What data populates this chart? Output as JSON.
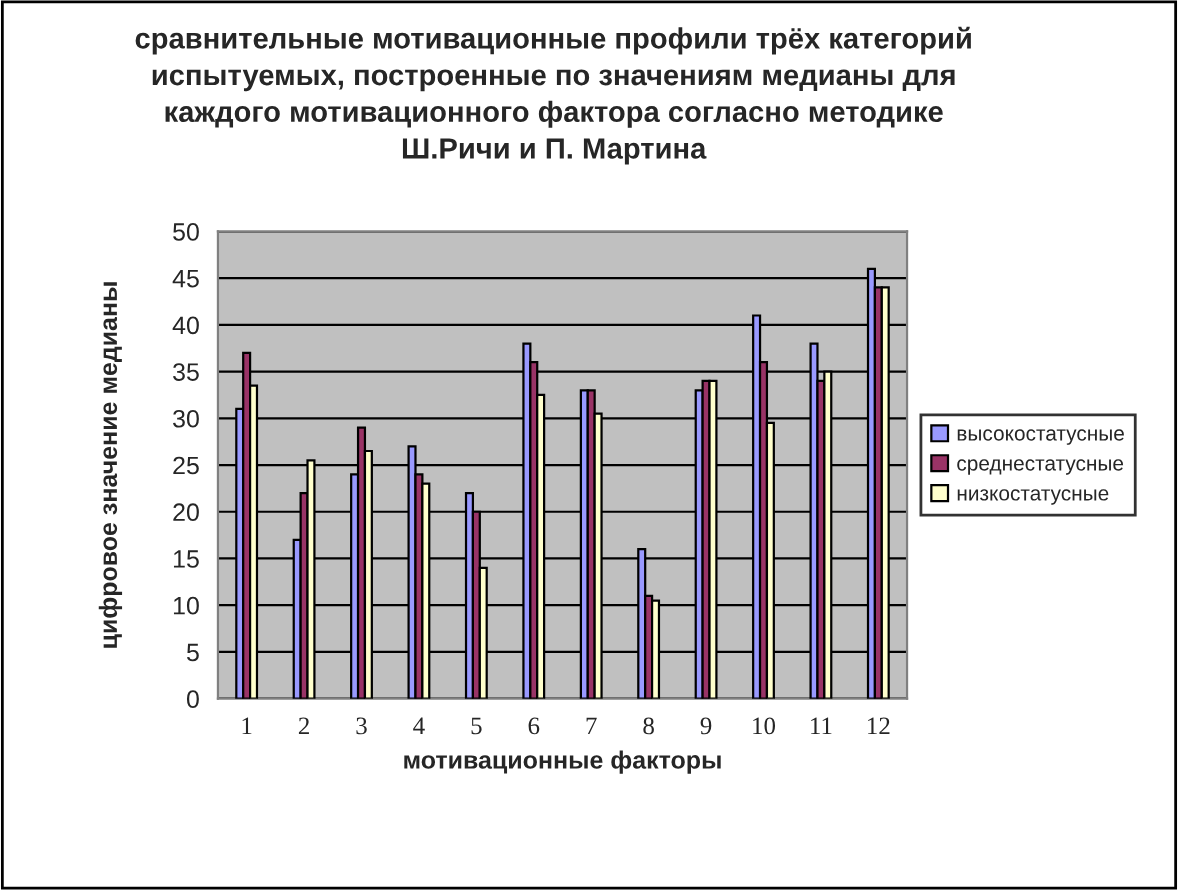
{
  "chart_data": {
    "type": "bar",
    "title": "сравнительные мотивационные профили трёх категорий\nиспытуемых, построенные по значениям медианы для\nкаждого мотивационного фактора согласно методике\nШ.Ричи и П. Мартина",
    "xlabel": "мотивационные факторы",
    "ylabel": "цифровое значение медианы",
    "categories": [
      "1",
      "2",
      "3",
      "4",
      "5",
      "6",
      "7",
      "8",
      "9",
      "10",
      "11",
      "12"
    ],
    "series": [
      {
        "name": "высокостатусные",
        "color": "#9999ff",
        "values": [
          31,
          17,
          24,
          27,
          22,
          38,
          33,
          16,
          33,
          41,
          38,
          46
        ]
      },
      {
        "name": "среднестатусные",
        "color": "#993366",
        "values": [
          37,
          22,
          29,
          24,
          20,
          36,
          33,
          11,
          34,
          36,
          34,
          44
        ]
      },
      {
        "name": "низкостатусные",
        "color": "#ffffcc",
        "values": [
          33.5,
          25.5,
          26.5,
          23,
          14,
          32.5,
          30.5,
          10.5,
          34,
          29.5,
          35,
          44
        ]
      }
    ],
    "ylim": [
      0,
      50
    ],
    "yticks": [
      0,
      5,
      10,
      15,
      20,
      25,
      30,
      35,
      40,
      45,
      50
    ],
    "grid": "y",
    "legend": "right"
  }
}
